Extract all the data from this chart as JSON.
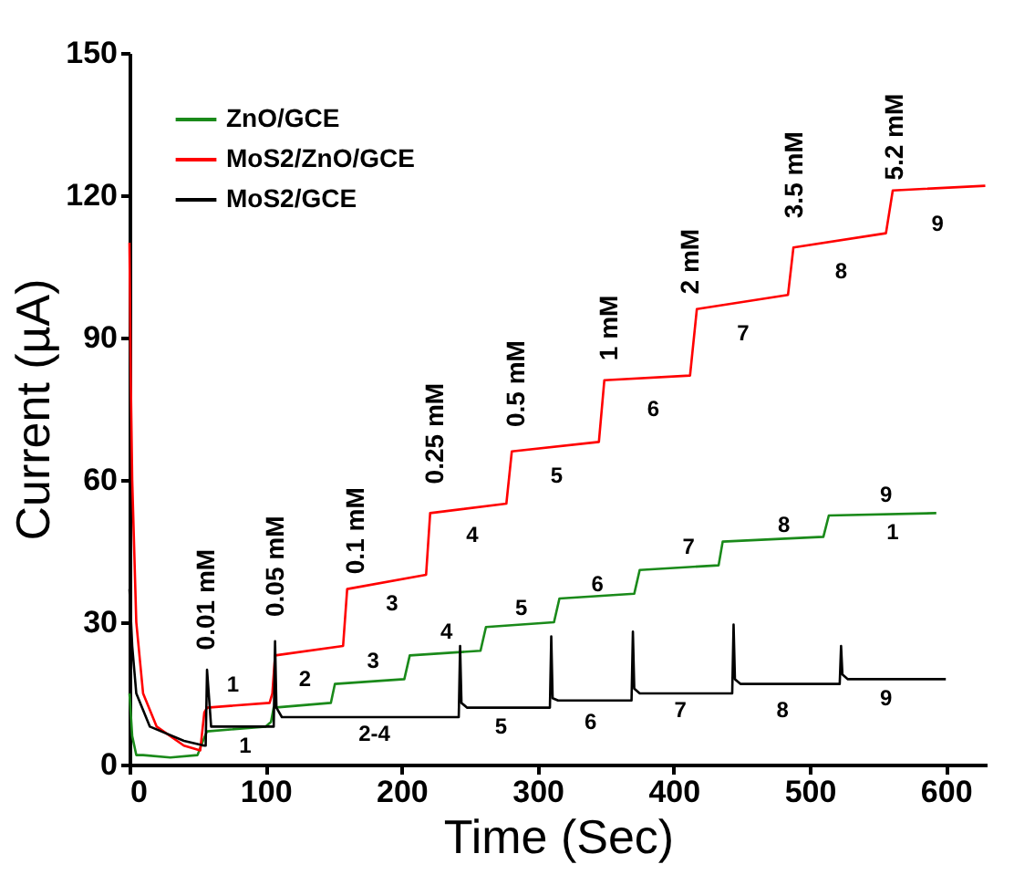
{
  "chart_data": {
    "type": "line",
    "xlabel": "Time (Sec)",
    "ylabel": "Current (µA)",
    "xlim": [
      0,
      630
    ],
    "ylim": [
      0,
      150
    ],
    "xticks": [
      0,
      100,
      200,
      300,
      400,
      500,
      600
    ],
    "yticks": [
      0,
      30,
      60,
      90,
      120,
      150
    ],
    "grid": false,
    "legend": "top left",
    "marker": "none",
    "line_style": "solid",
    "series": [
      {
        "name": "ZnO/GCE",
        "color": "#1a8a1a",
        "x": [
          0,
          2,
          5,
          10,
          30,
          50,
          54,
          57,
          100,
          104,
          106,
          148,
          151,
          202,
          206,
          258,
          262,
          312,
          316,
          371,
          375,
          433,
          436,
          510,
          514,
          593
        ],
        "values": [
          15,
          6,
          2,
          2,
          1.5,
          2,
          5,
          7,
          8,
          9,
          12,
          13,
          17,
          18,
          23,
          24,
          29,
          30,
          35,
          36,
          41,
          42,
          47,
          48,
          52.5,
          53
        ]
      },
      {
        "name": "MoS2/ZnO/GCE",
        "color": "#ff0000",
        "x": [
          0,
          1,
          2,
          5,
          10,
          20,
          40,
          52,
          55,
          57,
          103,
          105,
          107,
          157,
          160,
          218,
          221,
          277,
          281,
          345,
          349,
          412,
          417,
          484,
          488,
          556,
          561,
          629
        ],
        "values": [
          110,
          80,
          60,
          30,
          15,
          8,
          4,
          3,
          11,
          12,
          13,
          15,
          23,
          25,
          37,
          40,
          53,
          55,
          66,
          68,
          81,
          82,
          96,
          99,
          109,
          112,
          121,
          122
        ]
      },
      {
        "name": "MoS2/GCE",
        "color": "#000000",
        "x": [
          0,
          2,
          5,
          15,
          40,
          55,
          56,
          57,
          60,
          106,
          107,
          108,
          112,
          242,
          243,
          244,
          248,
          309,
          310,
          311,
          315,
          369,
          370,
          371,
          375,
          443,
          444,
          445,
          449,
          522,
          523,
          524,
          528,
          600
        ],
        "values": [
          37,
          25,
          15,
          8,
          5,
          4,
          4,
          20,
          8,
          8,
          26,
          12,
          10,
          10,
          25,
          13,
          12,
          12,
          27,
          14,
          13.5,
          13.5,
          28,
          16,
          15,
          15,
          29.5,
          18,
          17,
          17,
          25,
          19,
          18,
          18
        ]
      }
    ],
    "annotations": [
      "0.01 mM",
      "0.05 mM",
      "0.1 mM",
      "0.25 mM",
      "0.5 mM",
      "1 mM",
      "2 mM",
      "3.5 mM",
      "5.2 mM",
      "1",
      "2",
      "3",
      "4",
      "5",
      "6",
      "7",
      "8",
      "9",
      "1",
      "3",
      "4",
      "5",
      "6",
      "7",
      "8",
      "9",
      "1",
      "2-4",
      "5",
      "6",
      "7",
      "8",
      "9"
    ]
  }
}
